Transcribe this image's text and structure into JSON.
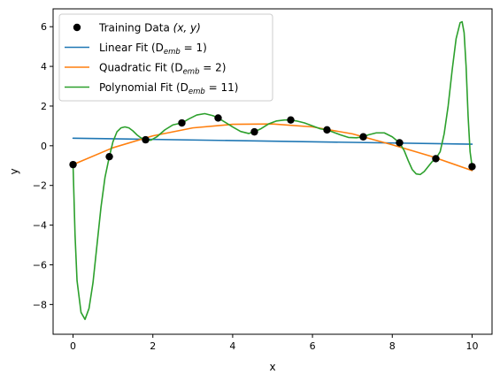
{
  "chart_data": {
    "type": "line",
    "xlabel": "x",
    "ylabel": "y",
    "xlim": [
      -0.5,
      10.5
    ],
    "ylim": [
      -9.5,
      6.9
    ],
    "xticks": [
      0,
      2,
      4,
      6,
      8,
      10
    ],
    "yticks": [
      -8,
      -6,
      -4,
      -2,
      0,
      2,
      4,
      6
    ],
    "grid": false,
    "legend_position": "top-left",
    "training_data": {
      "name": "Training Data (x, y)",
      "color": "#000000",
      "x": [
        0,
        0.909,
        1.818,
        2.727,
        3.636,
        4.545,
        5.455,
        6.364,
        7.273,
        8.182,
        9.091,
        10
      ],
      "y": [
        -0.95,
        -0.55,
        0.3,
        1.15,
        1.4,
        0.7,
        1.3,
        0.8,
        0.45,
        0.15,
        -0.65,
        -1.05
      ]
    },
    "series": [
      {
        "name": "Linear Fit (D_emb = 1)",
        "color": "#1f77b4",
        "x": [
          0,
          10
        ],
        "y": [
          0.38,
          0.08
        ]
      },
      {
        "name": "Quadratic Fit (D_emb = 2)",
        "color": "#ff7f0e",
        "x": [
          0,
          1,
          2,
          3,
          4,
          5,
          6,
          7,
          8,
          9,
          10
        ],
        "y": [
          -0.95,
          -0.1,
          0.5,
          0.9,
          1.08,
          1.1,
          0.95,
          0.6,
          0.05,
          -0.55,
          -1.25
        ]
      },
      {
        "name": "Polynomial Fit (D_emb = 11)",
        "color": "#2ca02c",
        "x": [
          0,
          0.05,
          0.1,
          0.2,
          0.3,
          0.4,
          0.5,
          0.6,
          0.7,
          0.8,
          0.909,
          1.0,
          1.1,
          1.2,
          1.3,
          1.4,
          1.5,
          1.6,
          1.7,
          1.818,
          1.95,
          2.1,
          2.3,
          2.5,
          2.727,
          2.9,
          3.1,
          3.3,
          3.5,
          3.636,
          3.8,
          4.0,
          4.2,
          4.4,
          4.545,
          4.7,
          4.9,
          5.1,
          5.3,
          5.455,
          5.6,
          5.8,
          6.0,
          6.2,
          6.364,
          6.5,
          6.7,
          6.9,
          7.1,
          7.273,
          7.4,
          7.6,
          7.8,
          8.0,
          8.182,
          8.3,
          8.4,
          8.5,
          8.6,
          8.7,
          8.8,
          8.9,
          9.0,
          9.091,
          9.2,
          9.3,
          9.4,
          9.5,
          9.6,
          9.7,
          9.75,
          9.8,
          9.85,
          9.9,
          9.95,
          10.0
        ],
        "y": [
          -0.95,
          -4.5,
          -6.8,
          -8.4,
          -8.75,
          -8.2,
          -6.9,
          -5.0,
          -3.1,
          -1.6,
          -0.55,
          0.2,
          0.7,
          0.9,
          0.95,
          0.9,
          0.75,
          0.55,
          0.4,
          0.3,
          0.28,
          0.45,
          0.8,
          1.05,
          1.15,
          1.35,
          1.55,
          1.62,
          1.52,
          1.4,
          1.2,
          0.95,
          0.72,
          0.62,
          0.7,
          0.85,
          1.1,
          1.25,
          1.3,
          1.3,
          1.25,
          1.15,
          1.0,
          0.85,
          0.8,
          0.7,
          0.55,
          0.42,
          0.4,
          0.45,
          0.55,
          0.65,
          0.65,
          0.45,
          0.15,
          -0.25,
          -0.75,
          -1.2,
          -1.42,
          -1.45,
          -1.3,
          -1.05,
          -0.8,
          -0.65,
          -0.3,
          0.6,
          2.0,
          3.8,
          5.4,
          6.2,
          6.25,
          5.7,
          4.0,
          1.5,
          -0.3,
          -1.05
        ]
      }
    ]
  },
  "legend": {
    "items": [
      {
        "label_main": "Training Data ",
        "label_math": "(x, y)",
        "label_sub": "",
        "label_tail": "",
        "kind": "marker",
        "color": "#000000"
      },
      {
        "label_main": "Linear Fit (D",
        "label_math": "",
        "label_sub": "emb",
        "label_tail": " = 1)",
        "kind": "line",
        "color": "#1f77b4"
      },
      {
        "label_main": "Quadratic Fit (D",
        "label_math": "",
        "label_sub": "emb",
        "label_tail": " = 2)",
        "kind": "line",
        "color": "#ff7f0e"
      },
      {
        "label_main": "Polynomial Fit (D",
        "label_math": "",
        "label_sub": "emb",
        "label_tail": " = 11)",
        "kind": "line",
        "color": "#2ca02c"
      }
    ]
  }
}
